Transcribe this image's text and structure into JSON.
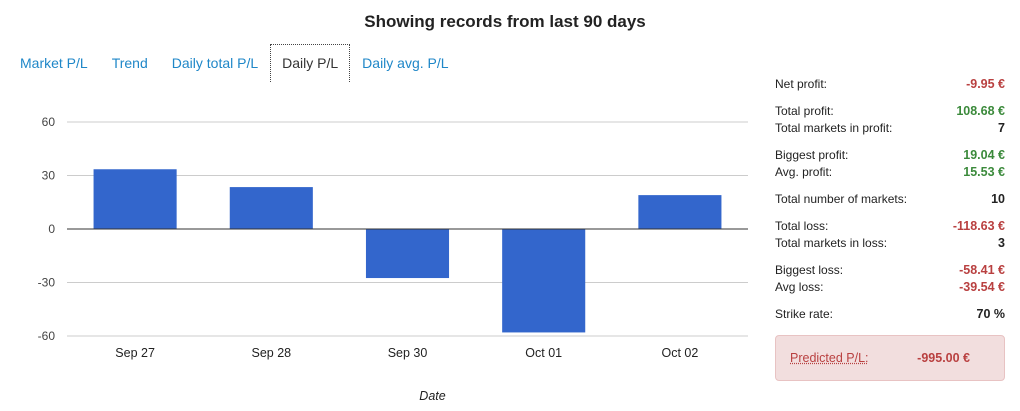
{
  "header": {
    "title": "Showing records from last 90 days"
  },
  "tabs": [
    {
      "label": "Market P/L",
      "active": false
    },
    {
      "label": "Trend",
      "active": false
    },
    {
      "label": "Daily total P/L",
      "active": false
    },
    {
      "label": "Daily P/L",
      "active": true
    },
    {
      "label": "Daily avg. P/L",
      "active": false
    }
  ],
  "chart_data": {
    "type": "bar",
    "title": "",
    "xlabel": "Date",
    "ylabel": "",
    "categories": [
      "Sep 27",
      "Sep 28",
      "Sep 30",
      "Oct 01",
      "Oct 02"
    ],
    "values": [
      33.5,
      23.5,
      -27.5,
      -58,
      19
    ],
    "ylim": [
      -60,
      60
    ],
    "yticks": [
      60,
      30,
      0,
      -30,
      -60
    ],
    "colors": {
      "bar": "#3366cc",
      "grid": "#cccccc",
      "zero": "#333333"
    }
  },
  "stats": {
    "net_profit": {
      "label": "Net profit:",
      "value": "-9.95 €"
    },
    "total_profit": {
      "label": "Total profit:",
      "value": "108.68 €"
    },
    "markets_in_profit": {
      "label": "Total markets in profit:",
      "value": "7"
    },
    "biggest_profit": {
      "label": "Biggest profit:",
      "value": "19.04 €"
    },
    "avg_profit": {
      "label": "Avg. profit:",
      "value": "15.53 €"
    },
    "total_markets": {
      "label": "Total number of markets:",
      "value": "10"
    },
    "total_loss": {
      "label": "Total loss:",
      "value": "-118.63 €"
    },
    "markets_in_loss": {
      "label": "Total markets in loss:",
      "value": "3"
    },
    "biggest_loss": {
      "label": "Biggest loss:",
      "value": "-58.41 €"
    },
    "avg_loss": {
      "label": "Avg loss:",
      "value": "-39.54 €"
    },
    "strike_rate": {
      "label": "Strike rate:",
      "value": "70 %"
    },
    "predicted": {
      "label": "Predicted P/L:",
      "value": "-995.00 €"
    }
  }
}
